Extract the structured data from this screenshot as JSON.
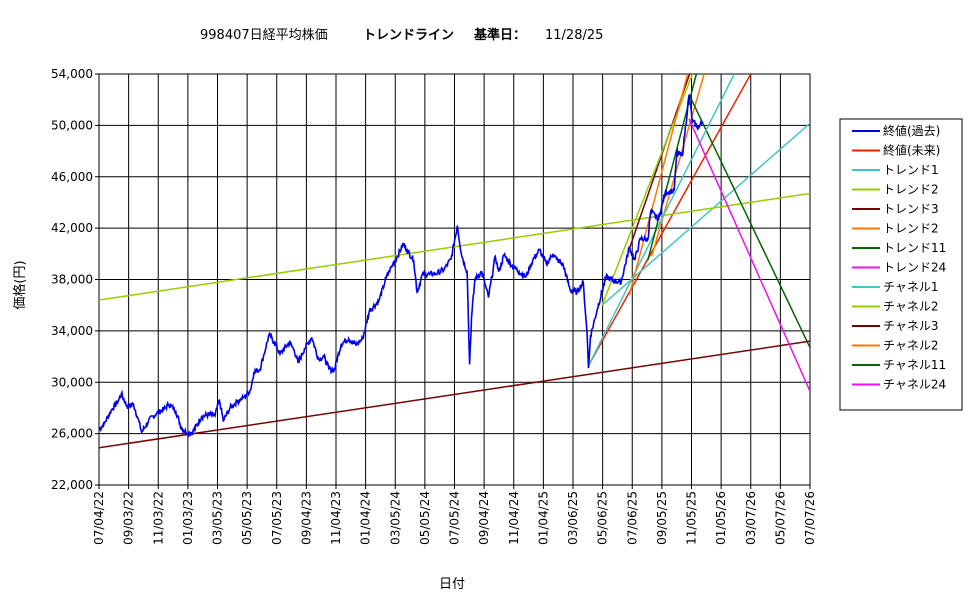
{
  "title": {
    "code_name": "998407日経平均株価",
    "trendline": "トレンドライン",
    "base_label": "基準日：",
    "base_date": "11/28/25"
  },
  "chart_data": {
    "type": "line",
    "xlabel": "日付",
    "ylabel": "価格(円)",
    "ylim": [
      22000,
      54000
    ],
    "yticks": [
      "22,000",
      "26,000",
      "30,000",
      "34,000",
      "38,000",
      "42,000",
      "46,000",
      "50,000",
      "54,000"
    ],
    "xticks": [
      "07/04/22",
      "09/03/22",
      "11/03/22",
      "01/03/23",
      "03/05/23",
      "05/05/23",
      "07/05/23",
      "09/04/23",
      "11/04/23",
      "01/04/24",
      "03/05/24",
      "05/05/24",
      "07/05/24",
      "09/04/24",
      "11/04/24",
      "01/04/25",
      "03/06/25",
      "05/06/25",
      "07/06/25",
      "09/05/25",
      "11/05/25",
      "01/05/26",
      "03/07/26",
      "05/07/26",
      "07/07/26"
    ],
    "grid": true,
    "legend_position": "right",
    "legend": [
      "終値(過去)",
      "終値(未来)",
      "トレンド1",
      "トレンド2",
      "トレンド3",
      "トレンド2",
      "トレンド11",
      "トレンド24",
      "チャネル1",
      "チャネル2",
      "チャネル3",
      "チャネル2",
      "チャネル11",
      "チャネル24"
    ],
    "colors": [
      "#0000ee",
      "#ee2200",
      "#44c4c4",
      "#99cc00",
      "#7a0000",
      "#ff7700",
      "#006600",
      "#ee11ee",
      "#44c4c4",
      "#99cc00",
      "#7a0000",
      "#ff7700",
      "#006600",
      "#ee11ee"
    ],
    "close_past": [
      [
        "07/04/22",
        26300
      ],
      [
        "07/15/22",
        26800
      ],
      [
        "07/29/22",
        27800
      ],
      [
        "08/12/22",
        28500
      ],
      [
        "08/19/22",
        29100
      ],
      [
        "08/31/22",
        28100
      ],
      [
        "09/13/22",
        28300
      ],
      [
        "09/22/22",
        27200
      ],
      [
        "09/30/22",
        26100
      ],
      [
        "10/14/22",
        27000
      ],
      [
        "10/31/22",
        27600
      ],
      [
        "11/15/22",
        27900
      ],
      [
        "11/25/22",
        28300
      ],
      [
        "12/09/22",
        27800
      ],
      [
        "12/20/22",
        26500
      ],
      [
        "12/30/22",
        26100
      ],
      [
        "01/13/23",
        26100
      ],
      [
        "01/31/23",
        27300
      ],
      [
        "02/15/23",
        27500
      ],
      [
        "02/28/23",
        27400
      ],
      [
        "03/09/23",
        28600
      ],
      [
        "03/17/23",
        27000
      ],
      [
        "03/31/23",
        28000
      ],
      [
        "04/14/23",
        28500
      ],
      [
        "04/28/23",
        28800
      ],
      [
        "05/12/23",
        29400
      ],
      [
        "05/19/23",
        30800
      ],
      [
        "05/31/23",
        31000
      ],
      [
        "06/09/23",
        32200
      ],
      [
        "06/19/23",
        33700
      ],
      [
        "06/30/23",
        33100
      ],
      [
        "07/12/23",
        32200
      ],
      [
        "07/31/23",
        33100
      ],
      [
        "08/10/23",
        32500
      ],
      [
        "08/18/23",
        31500
      ],
      [
        "08/31/23",
        32600
      ],
      [
        "09/15/23",
        33500
      ],
      [
        "09/29/23",
        31800
      ],
      [
        "10/10/23",
        32000
      ],
      [
        "10/20/23",
        31100
      ],
      [
        "10/31/23",
        30900
      ],
      [
        "11/15/23",
        33000
      ],
      [
        "11/30/23",
        33400
      ],
      [
        "12/15/23",
        32900
      ],
      [
        "12/29/23",
        33400
      ],
      [
        "01/12/24",
        35600
      ],
      [
        "01/31/24",
        36300
      ],
      [
        "02/15/24",
        38100
      ],
      [
        "02/29/24",
        39200
      ],
      [
        "03/08/24",
        39700
      ],
      [
        "03/22/24",
        40800
      ],
      [
        "03/29/24",
        40300
      ],
      [
        "04/12/24",
        39500
      ],
      [
        "04/19/24",
        37000
      ],
      [
        "04/30/24",
        38400
      ],
      [
        "05/15/24",
        38400
      ],
      [
        "05/31/24",
        38500
      ],
      [
        "06/14/24",
        38800
      ],
      [
        "06/28/24",
        39600
      ],
      [
        "07/11/24",
        42200
      ],
      [
        "07/19/24",
        40000
      ],
      [
        "07/31/24",
        38600
      ],
      [
        "08/02/24",
        35900
      ],
      [
        "08/05/24",
        31400
      ],
      [
        "08/09/24",
        35000
      ],
      [
        "08/16/24",
        38000
      ],
      [
        "08/30/24",
        38600
      ],
      [
        "09/13/24",
        36600
      ],
      [
        "09/27/24",
        39800
      ],
      [
        "10/04/24",
        38600
      ],
      [
        "10/15/24",
        39900
      ],
      [
        "10/31/24",
        39100
      ],
      [
        "11/15/24",
        38600
      ],
      [
        "11/29/24",
        38200
      ],
      [
        "12/13/24",
        39500
      ],
      [
        "12/27/24",
        40300
      ],
      [
        "01/10/25",
        39200
      ],
      [
        "01/24/25",
        40000
      ],
      [
        "01/31/25",
        39600
      ],
      [
        "02/14/25",
        39100
      ],
      [
        "02/28/25",
        37200
      ],
      [
        "03/14/25",
        37000
      ],
      [
        "03/27/25",
        37800
      ],
      [
        "04/04/25",
        33800
      ],
      [
        "04/07/25",
        31100
      ],
      [
        "04/11/25",
        33600
      ],
      [
        "04/25/25",
        35700
      ],
      [
        "05/13/25",
        38200
      ],
      [
        "05/30/25",
        37900
      ],
      [
        "06/13/25",
        37800
      ],
      [
        "06/30/25",
        40500
      ],
      [
        "07/11/25",
        39500
      ],
      [
        "07/23/25",
        41200
      ],
      [
        "08/07/25",
        41100
      ],
      [
        "08/13/25",
        43300
      ],
      [
        "08/29/25",
        42700
      ],
      [
        "09/12/25",
        44800
      ],
      [
        "09/30/25",
        44900
      ],
      [
        "10/06/25",
        47900
      ],
      [
        "10/17/25",
        47600
      ],
      [
        "10/31/25",
        52400
      ],
      [
        "11/07/25",
        50300
      ],
      [
        "11/20/25",
        49800
      ],
      [
        "11/28/25",
        50300
      ]
    ],
    "lines": [
      {
        "legend": 1,
        "p": [
          [
            "04/07/25",
            31300
          ],
          [
            "03/07/26",
            54000
          ]
        ]
      },
      {
        "legend": 2,
        "p": [
          [
            "05/05/25",
            36000
          ],
          [
            "10/31/26",
            54000
          ]
        ]
      },
      {
        "legend": 3,
        "p": [
          [
            "07/04/22",
            36400
          ],
          [
            "07/07/26",
            44700
          ]
        ]
      },
      {
        "legend": 4,
        "p": [
          [
            "07/01/25",
            40500
          ],
          [
            "11/01/25",
            54000
          ]
        ]
      },
      {
        "legend": 5,
        "p": [
          [
            "08/15/25",
            39800
          ],
          [
            "12/01/25",
            54000
          ]
        ]
      },
      {
        "legend": 6,
        "p": [
          [
            "10/31/25",
            52400
          ],
          [
            "07/07/26",
            32700
          ]
        ]
      },
      {
        "legend": 8,
        "p": [
          [
            "04/07/25",
            31300
          ],
          [
            "02/01/26",
            54000
          ]
        ]
      },
      {
        "legend": 9,
        "p": [
          [
            "05/05/25",
            36000
          ],
          [
            "11/07/25",
            54000
          ]
        ]
      },
      {
        "legend": 10,
        "p": [
          [
            "07/04/22",
            24900
          ],
          [
            "07/07/26",
            33200
          ]
        ]
      },
      {
        "legend": 11,
        "p": [
          [
            "06/30/25",
            36800
          ],
          [
            "10/28/25",
            54000
          ]
        ]
      },
      {
        "legend": 12,
        "p": [
          [
            "08/07/25",
            39500
          ],
          [
            "11/15/25",
            54000
          ]
        ]
      },
      {
        "legend": 13,
        "p": [
          [
            "10/31/25",
            50500
          ],
          [
            "07/07/26",
            29300
          ]
        ]
      }
    ]
  }
}
